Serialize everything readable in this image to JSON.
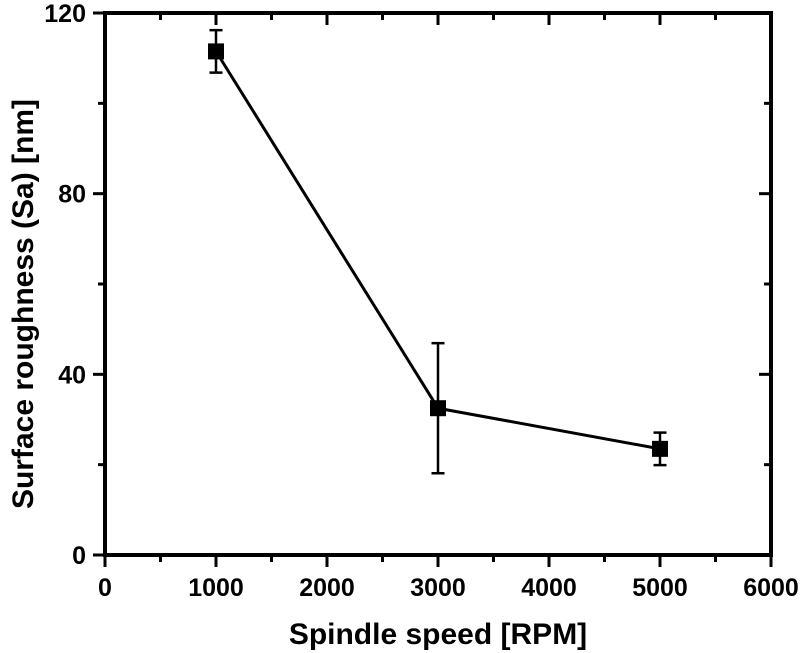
{
  "figure": {
    "description": "Line chart with square markers and vertical error bars, black on white",
    "ink_color": "#000000",
    "background_color": "#ffffff"
  },
  "chart_data": {
    "type": "line",
    "title": "",
    "xlabel": "Spindle speed [RPM]",
    "ylabel": "Surface roughness (Sa) [nm]",
    "series": [
      {
        "name": "Surface roughness (Sa)",
        "marker": "filled-square",
        "line_style": "solid",
        "color": "#000000",
        "points": [
          {
            "x": 1000,
            "y": 111.5,
            "y_err": 4.7
          },
          {
            "x": 3000,
            "y": 32.5,
            "y_err": 14.4
          },
          {
            "x": 5000,
            "y": 23.5,
            "y_err": 3.6
          }
        ]
      }
    ],
    "xlim": [
      0,
      6000
    ],
    "ylim": [
      0,
      120
    ],
    "x_major_ticks": [
      0,
      1000,
      2000,
      3000,
      4000,
      5000,
      6000
    ],
    "x_tick_labels": [
      "0",
      "1000",
      "2000",
      "3000",
      "4000",
      "5000",
      "6000"
    ],
    "x_minor_step": 500,
    "y_major_ticks": [
      0,
      40,
      80,
      120
    ],
    "y_tick_labels": [
      "0",
      "40",
      "80",
      "120"
    ],
    "y_minor_step": 20,
    "grid": false,
    "legend": "none",
    "frame": "full box; ticks outward on bottom/left axes, inward on top/right axes"
  }
}
